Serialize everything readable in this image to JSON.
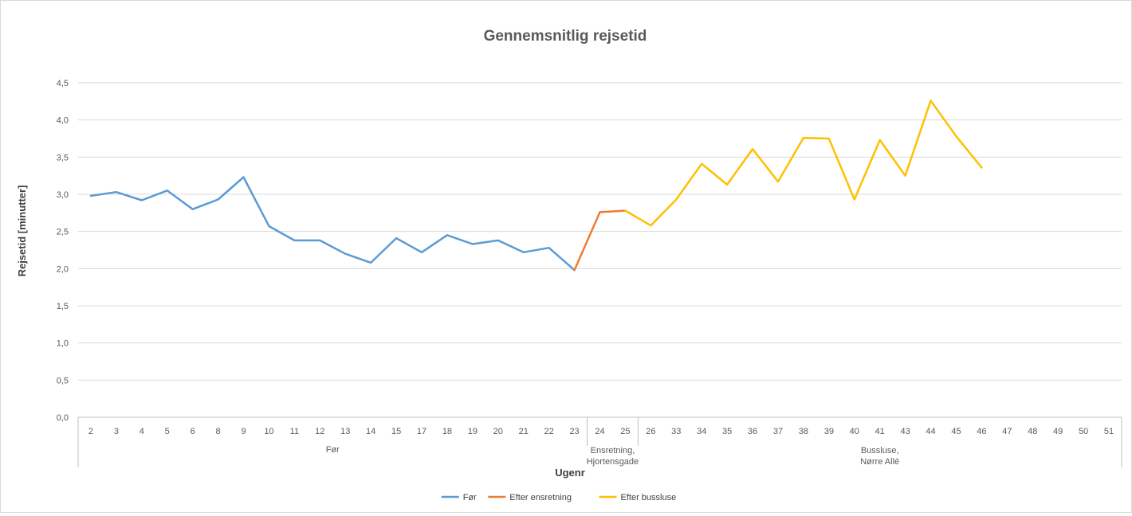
{
  "chart_data": {
    "type": "line",
    "title": "Gennemsnitlig rejsetid",
    "xlabel": "Ugenr",
    "ylabel": "Rejsetid [minutter]",
    "ylim": [
      0,
      4.5
    ],
    "y_ticks": [
      "0,0",
      "0,5",
      "1,0",
      "1,5",
      "2,0",
      "2,5",
      "3,0",
      "3,5",
      "4,0",
      "4,5"
    ],
    "grid": true,
    "legend_position": "bottom",
    "categories": [
      "2",
      "3",
      "4",
      "5",
      "6",
      "8",
      "9",
      "10",
      "11",
      "12",
      "13",
      "14",
      "15",
      "17",
      "18",
      "19",
      "20",
      "21",
      "22",
      "23",
      "24",
      "25",
      "26",
      "33",
      "34",
      "35",
      "36",
      "37",
      "38",
      "39",
      "40",
      "41",
      "43",
      "44",
      "45",
      "46",
      "47",
      "48",
      "49",
      "50",
      "51"
    ],
    "groups": [
      {
        "lines": [
          "Før"
        ],
        "from": 0,
        "to": 19
      },
      {
        "lines": [
          "Ensretning,",
          "Hjortensgade"
        ],
        "from": 20,
        "to": 21
      },
      {
        "lines": [
          "Bussluse,",
          "Nørre Allé"
        ],
        "from": 22,
        "to": 40
      }
    ],
    "series": [
      {
        "name": "Før",
        "color": "#5b9bd5",
        "values": [
          2.98,
          3.03,
          2.92,
          3.05,
          2.8,
          2.93,
          3.23,
          2.57,
          2.38,
          2.38,
          2.2,
          2.08,
          2.41,
          2.22,
          2.45,
          2.33,
          2.38,
          2.22,
          2.28,
          1.98,
          null,
          null,
          null,
          null,
          null,
          null,
          null,
          null,
          null,
          null,
          null,
          null,
          null,
          null,
          null,
          null,
          null,
          null,
          null,
          null,
          null
        ]
      },
      {
        "name": "Efter ensretning",
        "color": "#ed7d31",
        "values": [
          null,
          null,
          null,
          null,
          null,
          null,
          null,
          null,
          null,
          null,
          null,
          null,
          null,
          null,
          null,
          null,
          null,
          null,
          null,
          1.98,
          2.76,
          2.78,
          null,
          null,
          null,
          null,
          null,
          null,
          null,
          null,
          null,
          null,
          null,
          null,
          null,
          null,
          null,
          null,
          null,
          null,
          null
        ]
      },
      {
        "name": "Efter bussluse",
        "color": "#ffc000",
        "values": [
          null,
          null,
          null,
          null,
          null,
          null,
          null,
          null,
          null,
          null,
          null,
          null,
          null,
          null,
          null,
          null,
          null,
          null,
          null,
          null,
          null,
          2.78,
          2.58,
          2.93,
          3.41,
          3.13,
          3.61,
          3.17,
          3.76,
          3.75,
          2.93,
          3.73,
          3.25,
          4.26,
          3.78,
          3.36,
          null,
          null,
          null,
          null,
          null
        ]
      }
    ]
  }
}
